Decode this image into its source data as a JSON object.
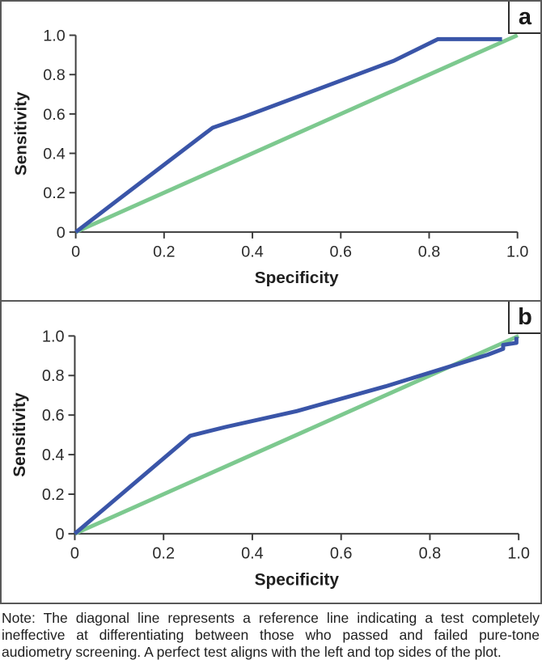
{
  "figure": {
    "note": "Note: The diagonal line represents a reference line indicating a test completely ineffective at differentiating between those who passed and failed pure-tone audiometry screening. A perfect test aligns with the left and top sides of the plot."
  },
  "colors": {
    "roc_line": "#3A55A8",
    "reference_line": "#7DC98F",
    "axis": "#3d3d3d",
    "tick_text": "#2b2b2b",
    "panel_border": "#595959"
  },
  "chart_data": [
    {
      "type": "line",
      "panel_label": "a",
      "title": "",
      "xlabel": "Specificity",
      "ylabel": "Sensitivity",
      "xlim": [
        0,
        1
      ],
      "ylim": [
        0,
        1
      ],
      "grid": false,
      "legend": "none",
      "x_ticks": {
        "values": [
          0,
          0.2,
          0.4,
          0.6,
          0.8,
          1.0
        ],
        "labels": [
          "0",
          "0.2",
          "0.4",
          "0.6",
          "0.8",
          "1.0"
        ]
      },
      "y_ticks": {
        "values": [
          0,
          0.2,
          0.4,
          0.6,
          0.8,
          1.0
        ],
        "labels": [
          "0",
          "0.2",
          "0.4",
          "0.6",
          "0.8",
          "1.0"
        ]
      },
      "series": [
        {
          "name": "Reference line",
          "color_key": "reference_line",
          "points": [
            [
              0,
              0
            ],
            [
              1.0,
              1.0
            ]
          ]
        },
        {
          "name": "ROC curve",
          "color_key": "roc_line",
          "points": [
            [
              0,
              0
            ],
            [
              0.31,
              0.53
            ],
            [
              0.38,
              0.585
            ],
            [
              0.72,
              0.87
            ],
            [
              0.82,
              0.98
            ],
            [
              0.965,
              0.98
            ]
          ]
        }
      ]
    },
    {
      "type": "line",
      "panel_label": "b",
      "title": "",
      "xlabel": "Specificity",
      "ylabel": "Sensitivity",
      "xlim": [
        0,
        1
      ],
      "ylim": [
        0,
        1
      ],
      "grid": false,
      "legend": "none",
      "x_ticks": {
        "values": [
          0,
          0.2,
          0.4,
          0.6,
          0.8,
          1.0
        ],
        "labels": [
          "0",
          "0.2",
          "0.4",
          "0.6",
          "0.8",
          "1.0"
        ]
      },
      "y_ticks": {
        "values": [
          0,
          0.2,
          0.4,
          0.6,
          0.8,
          1.0
        ],
        "labels": [
          "0",
          "0.2",
          "0.4",
          "0.6",
          "0.8",
          "1.0"
        ]
      },
      "series": [
        {
          "name": "Reference line",
          "color_key": "reference_line",
          "points": [
            [
              0,
              0
            ],
            [
              1.0,
              1.0
            ]
          ]
        },
        {
          "name": "ROC curve",
          "color_key": "roc_line",
          "points": [
            [
              0,
              0
            ],
            [
              0.26,
              0.495
            ],
            [
              0.34,
              0.54
            ],
            [
              0.5,
              0.62
            ],
            [
              0.7,
              0.745
            ],
            [
              0.88,
              0.87
            ],
            [
              0.93,
              0.905
            ],
            [
              0.965,
              0.935
            ],
            [
              0.965,
              0.955
            ],
            [
              0.995,
              0.965
            ],
            [
              0.995,
              0.995
            ]
          ]
        }
      ]
    }
  ]
}
